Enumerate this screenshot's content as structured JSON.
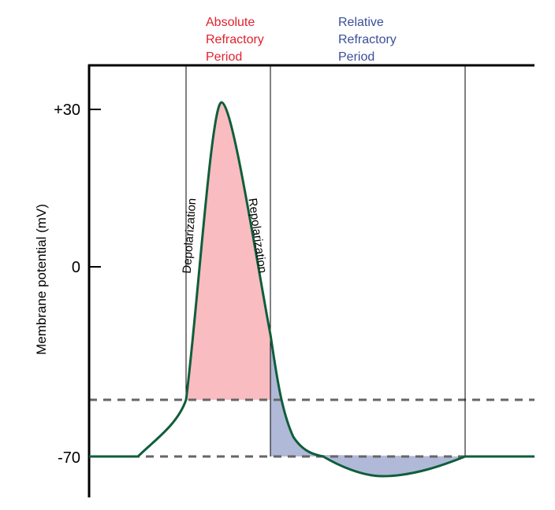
{
  "labels": {
    "absolute": [
      "Absolute",
      "Refractory",
      "Period"
    ],
    "relative": [
      "Relative",
      "Refractory",
      "Period"
    ],
    "depolarization": "Depolarization",
    "repolarization": "Repolarization"
  },
  "axis": {
    "ylabel": "Membrane potential (mV)",
    "ticks": [
      "+30",
      "0",
      "-70"
    ]
  },
  "colors": {
    "absolute_text": "#e0222e",
    "relative_text": "#3a4e9a",
    "curve": "#0f5e3a",
    "absolute_fill": "#f9bcc0",
    "relative_fill": "#b0b9d8",
    "threshold_dash": "#666666"
  }
}
